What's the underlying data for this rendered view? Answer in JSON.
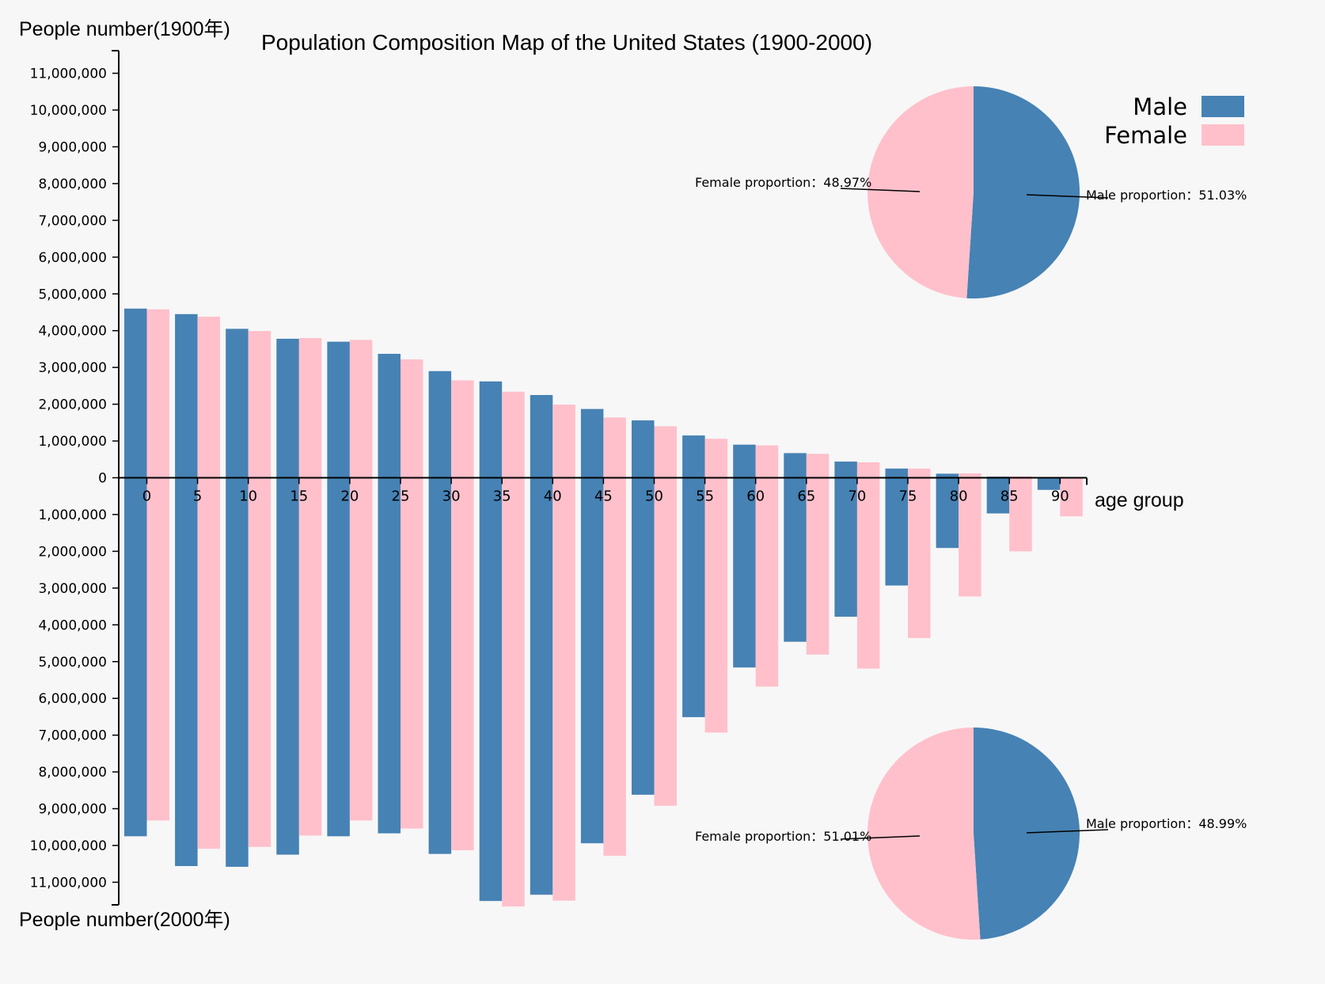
{
  "chart_data": {
    "type": "bar",
    "title": "Population Composition Map of the United States (1900-2000)",
    "ylabel_top": "People number(1900年)",
    "ylabel_bottom": "People number(2000年)",
    "xlabel": "age group",
    "categories": [
      "0",
      "5",
      "10",
      "15",
      "20",
      "25",
      "30",
      "35",
      "40",
      "45",
      "50",
      "55",
      "60",
      "65",
      "70",
      "75",
      "80",
      "85",
      "90"
    ],
    "y_ticks": [
      "11,000,000",
      "10,000,000",
      "9,000,000",
      "8,000,000",
      "7,000,000",
      "6,000,000",
      "5,000,000",
      "4,000,000",
      "3,000,000",
      "2,000,000",
      "1,000,000",
      "0",
      "1,000,000",
      "2,000,000",
      "3,000,000",
      "4,000,000",
      "5,000,000",
      "6,000,000",
      "7,000,000",
      "8,000,000",
      "9,000,000",
      "10,000,000",
      "11,000,000"
    ],
    "ylim": [
      -11500000,
      11500000
    ],
    "series": [
      {
        "name": "Male",
        "year": "1900",
        "color": "#4682b4",
        "values": [
          4600000,
          4450000,
          4050000,
          3780000,
          3700000,
          3370000,
          2900000,
          2620000,
          2250000,
          1870000,
          1560000,
          1150000,
          900000,
          670000,
          440000,
          250000,
          110000,
          30000,
          8000
        ]
      },
      {
        "name": "Female",
        "year": "1900",
        "color": "#ffc0cb",
        "values": [
          4580000,
          4380000,
          3990000,
          3800000,
          3750000,
          3220000,
          2650000,
          2340000,
          1990000,
          1640000,
          1400000,
          1060000,
          880000,
          650000,
          420000,
          250000,
          120000,
          40000,
          10000
        ]
      },
      {
        "name": "Male",
        "year": "2000",
        "color": "#4682b4",
        "values": [
          9750000,
          10560000,
          10580000,
          10250000,
          9750000,
          9670000,
          10230000,
          11510000,
          11340000,
          9940000,
          8620000,
          6510000,
          5160000,
          4460000,
          3780000,
          2930000,
          1910000,
          970000,
          330000
        ]
      },
      {
        "name": "Female",
        "year": "2000",
        "color": "#ffc0cb",
        "values": [
          9320000,
          10090000,
          10040000,
          9730000,
          9320000,
          9540000,
          10130000,
          11660000,
          11500000,
          10280000,
          8920000,
          6930000,
          5680000,
          4810000,
          5190000,
          4360000,
          3230000,
          2000000,
          1050000
        ]
      }
    ],
    "legend": [
      {
        "label": "Male",
        "color": "#4682b4"
      },
      {
        "label": "Female",
        "color": "#ffc0cb"
      }
    ],
    "pies": [
      {
        "year": "1900",
        "male_share": 51.03,
        "female_share": 48.97,
        "male_label": "Male proportion：51.03%",
        "female_label": "Female proportion：48.97%"
      },
      {
        "year": "2000",
        "male_share": 48.99,
        "female_share": 51.01,
        "male_label": "Male proportion：48.99%",
        "female_label": "Female proportion：51.01%"
      }
    ]
  }
}
